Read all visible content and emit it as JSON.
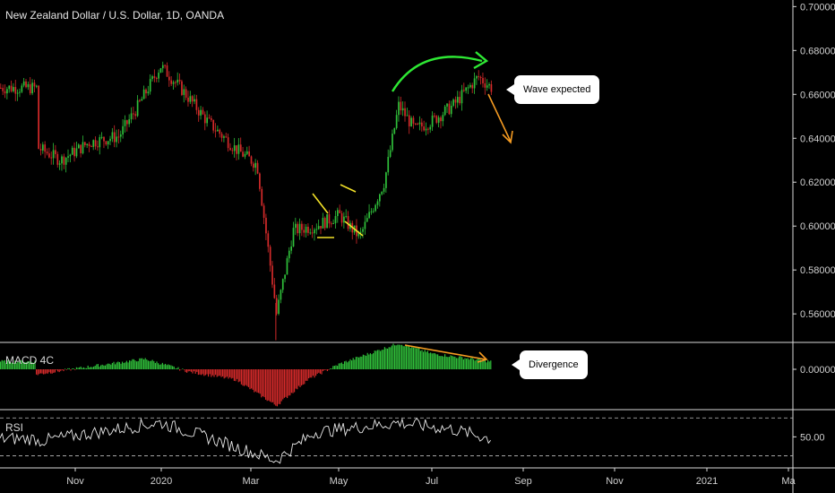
{
  "header": {
    "title": "New Zealand Dollar / U.S. Dollar, 1D, OANDA"
  },
  "panes": {
    "macd_label": "MACD 4C",
    "rsi_label": "RSI"
  },
  "annotations": {
    "wave_text": "Wave expected",
    "divergence_text": "Divergence"
  },
  "colors": {
    "up": "#2fbf3a",
    "down": "#d42a2a",
    "yellow": "#f2e128",
    "orange": "#f59b22",
    "green_arrow": "#2ee834",
    "axis_text": "#d0d0d0",
    "rsi_line": "#e8e8e8"
  },
  "chart_data": [
    {
      "type": "candlestick",
      "title": "New Zealand Dollar / U.S. Dollar, 1D, OANDA",
      "x_ticks": [
        "Nov",
        "2020",
        "Mar",
        "May",
        "Jul",
        "Sep",
        "Nov",
        "2021",
        "Ma"
      ],
      "y_ticks": [
        "0.70000",
        "0.68000",
        "0.66000",
        "0.64000",
        "0.62000",
        "0.60000",
        "0.58000",
        "0.56000"
      ],
      "ylim": [
        0.547,
        0.703
      ],
      "approx_close_path": [
        [
          "Oct 1",
          0.636
        ],
        [
          "Oct 20",
          0.63
        ],
        [
          "Nov 10",
          0.638
        ],
        [
          "Dec 1",
          0.641
        ],
        [
          "Dec 15",
          0.655
        ],
        [
          "Dec 31",
          0.673
        ],
        [
          "Jan 15",
          0.662
        ],
        [
          "Feb 1",
          0.648
        ],
        [
          "Feb 20",
          0.635
        ],
        [
          "Mar 5",
          0.628
        ],
        [
          "Mar 19",
          0.56
        ],
        [
          "Mar 31",
          0.598
        ],
        [
          "Apr 15",
          0.6
        ],
        [
          "May 1",
          0.605
        ],
        [
          "May 15",
          0.595
        ],
        [
          "Jun 1",
          0.62
        ],
        [
          "Jun 10",
          0.655
        ],
        [
          "Jun 20",
          0.644
        ],
        [
          "Jul 1",
          0.648
        ],
        [
          "Jul 15",
          0.655
        ],
        [
          "Aug 1",
          0.668
        ],
        [
          "Aug 10",
          0.663
        ]
      ]
    },
    {
      "type": "bar",
      "name": "MACD 4C",
      "y_ticks": [
        "0.00000"
      ],
      "approx_hist_path": [
        [
          "Oct 1",
          -0.002
        ],
        [
          "Nov 10",
          0.001
        ],
        [
          "Dec 20",
          0.004
        ],
        [
          "Jan 20",
          -0.001
        ],
        [
          "Feb 20",
          -0.004
        ],
        [
          "Mar 19",
          -0.014
        ],
        [
          "Apr 10",
          -0.004
        ],
        [
          "May 1",
          0.002
        ],
        [
          "Jun 10",
          0.01
        ],
        [
          "Jul 1",
          0.006
        ],
        [
          "Aug 10",
          0.003
        ]
      ]
    },
    {
      "type": "line",
      "name": "RSI",
      "y_ticks": [
        "50.00"
      ],
      "approx_path": [
        [
          "Oct 1",
          45
        ],
        [
          "Dec 31",
          65
        ],
        [
          "Feb 1",
          50
        ],
        [
          "Mar 19",
          25
        ],
        [
          "Apr 15",
          55
        ],
        [
          "Jun 10",
          65
        ],
        [
          "Jul 15",
          58
        ],
        [
          "Aug 10",
          48
        ]
      ]
    }
  ]
}
